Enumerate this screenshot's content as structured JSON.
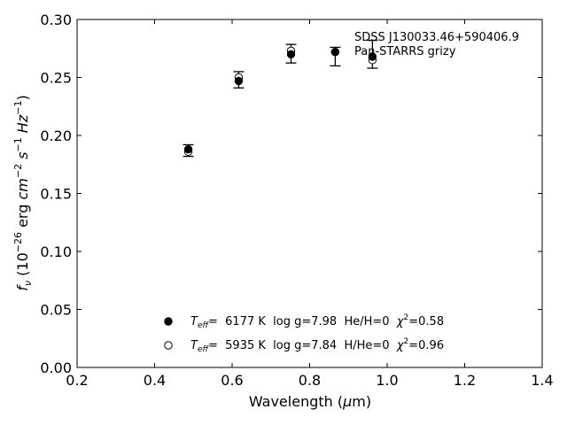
{
  "chart_data": {
    "type": "scatter",
    "xlabel": "Wavelength (μm)",
    "ylabel": "f_ν (10^-26 erg cm^-2 s^-1 Hz^-1)",
    "xlim": [
      0.2,
      1.4
    ],
    "ylim": [
      0.0,
      0.3
    ],
    "x_ticks": [
      "0.2",
      "0.4",
      "0.6",
      "0.8",
      "1.0",
      "1.2",
      "1.4"
    ],
    "y_ticks": [
      "0.00",
      "0.05",
      "0.10",
      "0.15",
      "0.20",
      "0.25",
      "0.30"
    ],
    "annotation": [
      "SDSS J130033.46+590406.9",
      "Pan-STARRS grizy"
    ],
    "grid": false,
    "observed": {
      "x": [
        0.487,
        0.617,
        0.752,
        0.866,
        0.962
      ],
      "y": [
        0.187,
        0.248,
        0.2705,
        0.268,
        0.27
      ],
      "yerr": [
        0.005,
        0.007,
        0.008,
        0.008,
        0.012
      ]
    },
    "series": [
      {
        "legend": "T_eff= 6177 K log g=7.98 He/H=0 χ²=0.58",
        "marker": "filled",
        "x": [
          0.487,
          0.617,
          0.752,
          0.866,
          0.962
        ],
        "y": [
          0.188,
          0.247,
          0.27,
          0.272,
          0.268
        ]
      },
      {
        "legend": "T_eff= 5935 K log g=7.84 H/He=0 χ²=0.96",
        "marker": "open",
        "x": [
          0.487,
          0.617,
          0.752,
          0.866,
          0.962
        ],
        "y": [
          0.186,
          0.25,
          0.273,
          0.272,
          0.265
        ]
      }
    ],
    "legend": [
      {
        "marker": "filled",
        "teff_label": "T",
        "teff_sub": "eff",
        "text": "=  6177 K  log g=7.98  He/H=0  ",
        "chi_label": "χ",
        "chi_sup": "2",
        "chi_value": "=0.58"
      },
      {
        "marker": "open",
        "teff_label": "T",
        "teff_sub": "eff",
        "text": "=  5935 K  log g=7.84  H/He=0  ",
        "chi_label": "χ",
        "chi_sup": "2",
        "chi_value": "=0.96"
      }
    ],
    "legend_location": "lower-center",
    "colors": {
      "marker": "#000000",
      "open_fill": "#ffffff"
    }
  }
}
